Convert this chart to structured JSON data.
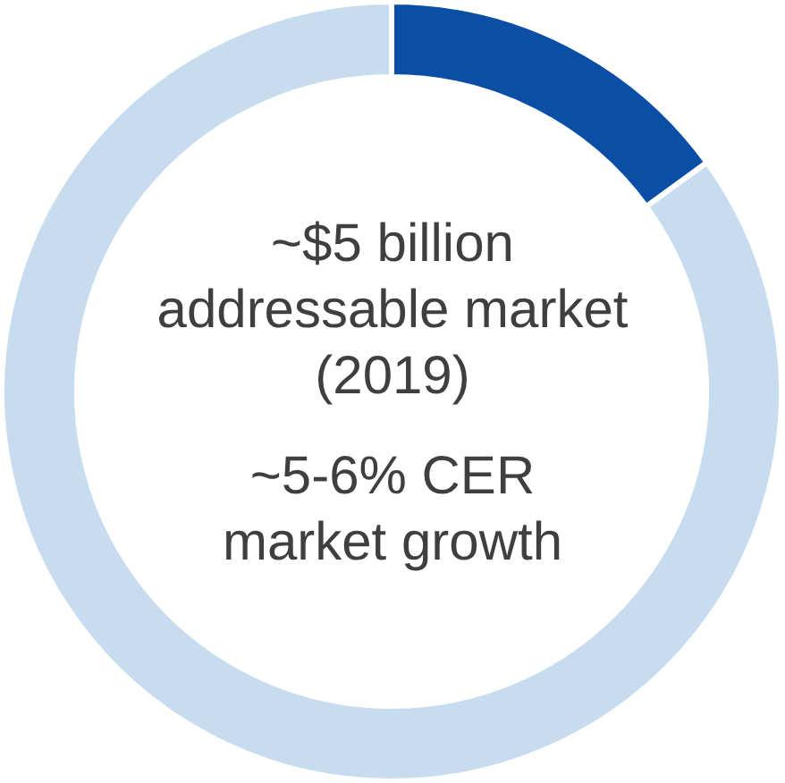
{
  "chart_data": {
    "type": "donut",
    "categories": [
      null,
      null
    ],
    "values": [
      15,
      85
    ],
    "colors": [
      "#0a4ea6",
      "#c8dcf0"
    ],
    "annotations": [
      "~$5 billion\naddressable market\n(2019)",
      "~5-6% CER\nmarket growth"
    ]
  }
}
